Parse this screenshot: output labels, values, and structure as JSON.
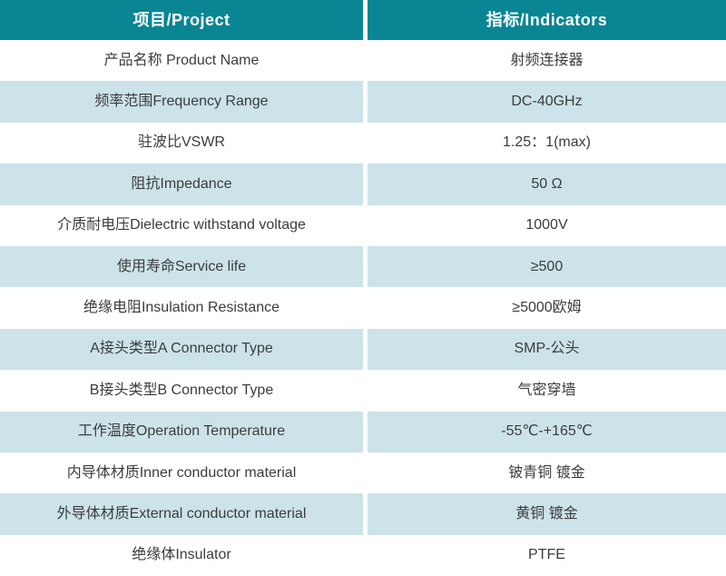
{
  "table": {
    "accent_color": "#0a8593",
    "alt_row_color": "#cce3e9",
    "header_text_color": "#ffffff",
    "body_text_color": "#3c3c3c",
    "header": {
      "project": "项目/Project",
      "indicators": "指标/Indicators"
    },
    "rows": [
      {
        "project": "产品名称 Product Name",
        "indicator": "射频连接器"
      },
      {
        "project": "频率范围Frequency Range",
        "indicator": "DC-40GHz"
      },
      {
        "project": "驻波比VSWR",
        "indicator": "1.25：1(max)"
      },
      {
        "project": "阻抗Impedance",
        "indicator": "50 Ω"
      },
      {
        "project": "介质耐电压Dielectric withstand voltage",
        "indicator": "1000V"
      },
      {
        "project": "使用寿命Service life",
        "indicator": "≥500"
      },
      {
        "project": "绝缘电阻Insulation Resistance",
        "indicator": "≥5000欧姆"
      },
      {
        "project": "A接头类型A Connector Type",
        "indicator": "SMP-公头"
      },
      {
        "project": "B接头类型B Connector Type",
        "indicator": "气密穿墙"
      },
      {
        "project": "工作温度Operation Temperature",
        "indicator": "-55℃-+165℃"
      },
      {
        "project": "内导体材质Inner conductor material",
        "indicator": "铍青铜 镀金"
      },
      {
        "project": "外导体材质External conductor material",
        "indicator": "黄铜 镀金"
      },
      {
        "project": "绝缘体Insulator",
        "indicator": "PTFE"
      }
    ]
  }
}
